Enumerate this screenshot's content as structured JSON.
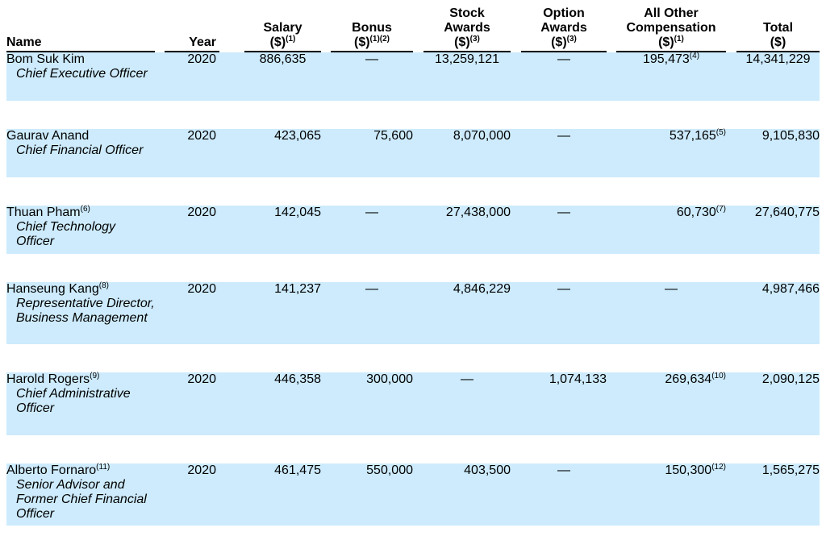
{
  "headers": {
    "name": "Name",
    "year": "Year",
    "salary": "Salary",
    "salary_unit": "($)",
    "salary_note": "(1)",
    "bonus": "Bonus",
    "bonus_unit": "($)",
    "bonus_note": "(1)(2)",
    "stock_1": "Stock",
    "stock_2": "Awards",
    "stock_unit": "($)",
    "stock_note": "(3)",
    "option_1": "Option",
    "option_2": "Awards",
    "option_unit": "($)",
    "option_note": "(3)",
    "other_1": "All Other",
    "other_2": "Compensation",
    "other_unit": "($)",
    "other_note": "(1)",
    "total": "Total",
    "total_unit": "($)"
  },
  "rows": [
    {
      "name": "Bom Suk Kim",
      "name_note": "",
      "title": "Chief Executive Officer",
      "year": "2020",
      "salary": "886,635",
      "bonus": "—",
      "stock": "13,259,121",
      "option": "—",
      "other": "195,473",
      "other_note": "(4)",
      "total": "14,341,229"
    },
    {
      "name": "Gaurav Anand",
      "name_note": "",
      "title": "Chief Financial Officer",
      "year": "2020",
      "salary": "423,065",
      "bonus": "75,600",
      "stock": "8,070,000",
      "option": "—",
      "other": "537,165",
      "other_note": "(5)",
      "total": "9,105,830"
    },
    {
      "name": "Thuan Pham",
      "name_note": "(6)",
      "title": "Chief Technology Officer",
      "year": "2020",
      "salary": "142,045",
      "bonus": "—",
      "stock": "27,438,000",
      "option": "—",
      "other": "60,730",
      "other_note": "(7)",
      "total": "27,640,775"
    },
    {
      "name": "Hanseung Kang",
      "name_note": "(8)",
      "title": "Representative Director, Business Management",
      "year": "2020",
      "salary": "141,237",
      "bonus": "—",
      "stock": "4,846,229",
      "option": "—",
      "other": "—",
      "other_note": "",
      "total": "4,987,466"
    },
    {
      "name": "Harold Rogers",
      "name_note": "(9)",
      "title": "Chief Administrative Officer",
      "year": "2020",
      "salary": "446,358",
      "bonus": "300,000",
      "stock": "—",
      "option": "1,074,133",
      "other": "269,634",
      "other_note": "(10)",
      "total": "2,090,125"
    },
    {
      "name": "Alberto Fornaro",
      "name_note": "(11)",
      "title": "Senior Advisor and Former Chief Financial Officer",
      "year": "2020",
      "salary": "461,475",
      "bonus": "550,000",
      "stock": "403,500",
      "option": "—",
      "other": "150,300",
      "other_note": "(12)",
      "total": "1,565,275"
    }
  ]
}
